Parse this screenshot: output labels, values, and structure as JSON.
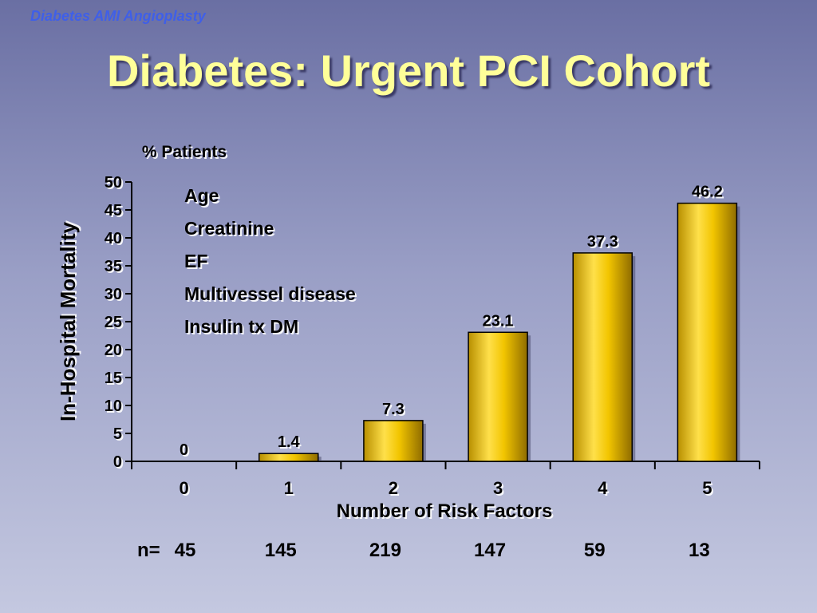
{
  "slide": {
    "header": "Diabetes AMI Angioplasty",
    "title": "Diabetes: Urgent PCI Cohort"
  },
  "chart_data": {
    "type": "bar",
    "unit_label": "% Patients",
    "ylabel": "In-Hospital Mortality",
    "xlabel": "Number of Risk Factors",
    "categories": [
      "0",
      "1",
      "2",
      "3",
      "4",
      "5"
    ],
    "values": [
      0,
      1.4,
      7.3,
      23.1,
      37.3,
      46.2
    ],
    "value_labels": [
      "0",
      "1.4",
      "7.3",
      "23.1",
      "37.3",
      "46.2"
    ],
    "ylim": [
      0,
      50
    ],
    "yticks": [
      "0",
      "5",
      "10",
      "15",
      "20",
      "25",
      "30",
      "35",
      "40",
      "45",
      "50"
    ],
    "bar_color": "#f2c500",
    "annotations": [
      "Age",
      "Creatinine",
      "EF",
      "Multivessel disease",
      "Insulin tx DM"
    ]
  },
  "sample_sizes": {
    "label": "n=",
    "values": [
      "45",
      "145",
      "219",
      "147",
      "59",
      "13"
    ]
  }
}
